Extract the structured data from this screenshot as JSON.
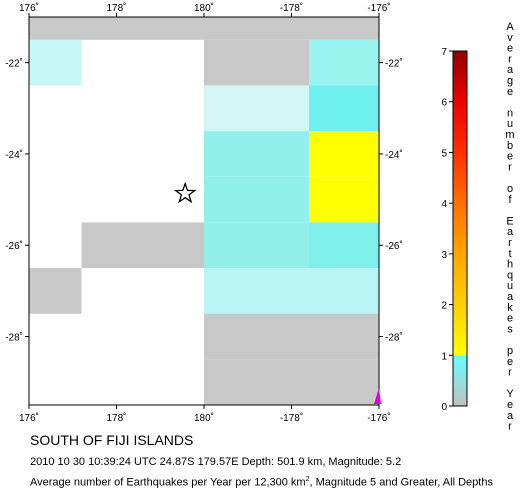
{
  "map": {
    "lon_ticks": [
      "176˚",
      "178˚",
      "180˚",
      "-178˚",
      "-176˚"
    ],
    "lat_ticks": [
      "-22˚",
      "-24˚",
      "-26˚",
      "-28˚"
    ],
    "grid": {
      "lon_range": [
        176,
        184
      ],
      "lat_range": [
        -21,
        -29.5
      ],
      "cells": [
        {
          "lon": 176,
          "lat": -21,
          "w": 1.2,
          "h": 0.5,
          "value": 0,
          "color": "#c8c8c8"
        },
        {
          "lon": 177.2,
          "lat": -21,
          "w": 6.8,
          "h": 0.5,
          "value": 0,
          "color": "#c8c8c8"
        },
        {
          "lon": 176,
          "lat": -21.5,
          "w": 1.2,
          "h": 1.0,
          "value": 0.2,
          "color": "#c6f7f7"
        },
        {
          "lon": 180,
          "lat": -21.5,
          "w": 2.4,
          "h": 1.0,
          "value": 0,
          "color": "#c8c8c8"
        },
        {
          "lon": 182.4,
          "lat": -21.5,
          "w": 1.6,
          "h": 1.0,
          "value": 0.5,
          "color": "#99f3ef"
        },
        {
          "lon": 180,
          "lat": -22.5,
          "w": 2.4,
          "h": 1.0,
          "value": 0.2,
          "color": "#d3f5f5"
        },
        {
          "lon": 182.4,
          "lat": -22.5,
          "w": 1.6,
          "h": 1.0,
          "value": 0.8,
          "color": "#6ff0ee"
        },
        {
          "lon": 180,
          "lat": -23.5,
          "w": 2.4,
          "h": 1.0,
          "value": 0.5,
          "color": "#92f0ec"
        },
        {
          "lon": 182.4,
          "lat": -23.5,
          "w": 1.6,
          "h": 1.0,
          "value": 1.0,
          "color": "#ffff00"
        },
        {
          "lon": 180,
          "lat": -24.5,
          "w": 2.4,
          "h": 1.0,
          "value": 0.5,
          "color": "#92f0ec"
        },
        {
          "lon": 182.4,
          "lat": -24.5,
          "w": 1.6,
          "h": 1.0,
          "value": 1.0,
          "color": "#ffff00"
        },
        {
          "lon": 177.2,
          "lat": -25.5,
          "w": 2.8,
          "h": 1.0,
          "value": 0,
          "color": "#c8c8c8"
        },
        {
          "lon": 180,
          "lat": -25.5,
          "w": 2.4,
          "h": 1.0,
          "value": 0.5,
          "color": "#92f0ec"
        },
        {
          "lon": 182.4,
          "lat": -25.5,
          "w": 1.6,
          "h": 1.0,
          "value": 0.6,
          "color": "#7eefea"
        },
        {
          "lon": 176,
          "lat": -26.5,
          "w": 1.2,
          "h": 1.0,
          "value": 0,
          "color": "#c8c8c8"
        },
        {
          "lon": 180,
          "lat": -26.5,
          "w": 4.0,
          "h": 1.0,
          "value": 0.3,
          "color": "#b8f5f4"
        },
        {
          "lon": 180,
          "lat": -27.5,
          "w": 4.0,
          "h": 1.0,
          "value": 0,
          "color": "#c8c8c8"
        },
        {
          "lon": 180,
          "lat": -28.5,
          "w": 4.0,
          "h": 1.0,
          "value": 0,
          "color": "#c8c8c8"
        }
      ]
    },
    "epicenter": {
      "lon": 179.57,
      "lat": -24.87,
      "marker": "star-icon"
    }
  },
  "colorbar": {
    "title_letters": [
      "A",
      "v",
      "e",
      "r",
      "a",
      "g",
      "e",
      "",
      "n",
      "u",
      "m",
      "b",
      "e",
      "r",
      "",
      "o",
      "f",
      "",
      "E",
      "a",
      "r",
      "t",
      "h",
      "q",
      "u",
      "a",
      "k",
      "e",
      "s",
      "",
      "p",
      "e",
      "r",
      "",
      "Y",
      "e",
      "a",
      "r"
    ],
    "ticks": [
      "0",
      "1",
      "2",
      "3",
      "4",
      "5",
      "6",
      "7"
    ],
    "range": [
      0,
      7
    ],
    "stops": [
      {
        "value": 0,
        "color": "#c0c0c0"
      },
      {
        "value": 1,
        "color": "#66ffff"
      },
      {
        "value": 1,
        "color": "#ffff00"
      },
      {
        "value": 2,
        "color": "#ffd000"
      },
      {
        "value": 3,
        "color": "#ffa500"
      },
      {
        "value": 4,
        "color": "#ff7000"
      },
      {
        "value": 5,
        "color": "#ff3000"
      },
      {
        "value": 6,
        "color": "#ee0000"
      },
      {
        "value": 7,
        "color": "#900000"
      }
    ]
  },
  "captions": {
    "region": "SOUTH OF FIJI ISLANDS",
    "event": "2010 10 30 10:39:24 UTC 24.87S 179.57E Depth: 501.9 km, Magnitude: 5.2",
    "avg_prefix": "Average number of Earthquakes per Year per 12,300 km",
    "avg_sup": "2",
    "avg_suffix": ", Magnitude 5 and Greater, All Depths"
  }
}
